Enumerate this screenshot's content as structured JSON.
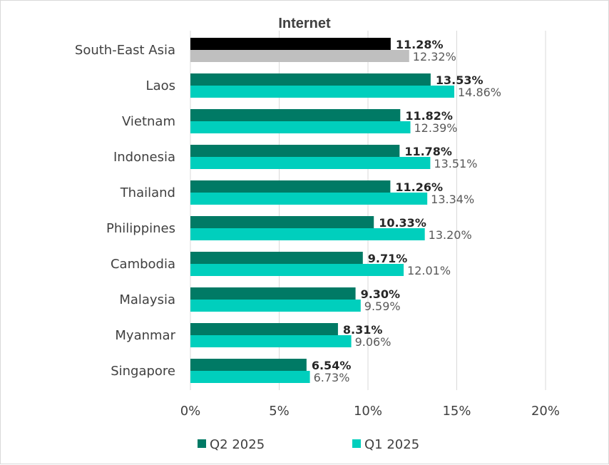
{
  "chart_data": {
    "type": "bar",
    "orientation": "horizontal",
    "title": "Internet",
    "categories": [
      "South-East Asia",
      "Laos",
      "Vietnam",
      "Indonesia",
      "Thailand",
      "Philippines",
      "Cambodia",
      "Malaysia",
      "Myanmar",
      "Singapore"
    ],
    "series": [
      {
        "name": "Q2 2025",
        "values": [
          11.28,
          13.53,
          11.82,
          11.78,
          11.26,
          10.33,
          9.71,
          9.3,
          8.31,
          6.54
        ],
        "labels": [
          "11.28%",
          "13.53%",
          "11.82%",
          "11.78%",
          "11.26%",
          "10.33%",
          "9.71%",
          "9.30%",
          "8.31%",
          "6.54%"
        ],
        "color": "#007a65",
        "highlight_color": "#000000"
      },
      {
        "name": "Q1 2025",
        "values": [
          12.32,
          14.86,
          12.39,
          13.51,
          13.34,
          13.2,
          12.01,
          9.59,
          9.06,
          6.73
        ],
        "labels": [
          "12.32%",
          "14.86%",
          "12.39%",
          "13.51%",
          "13.34%",
          "13.20%",
          "12.01%",
          "9.59%",
          "9.06%",
          "6.73%"
        ],
        "color": "#00cfbd",
        "highlight_color": "#bfbfbf"
      }
    ],
    "xlim": [
      0,
      20
    ],
    "xticks": [
      0,
      5,
      10,
      15,
      20
    ],
    "xtick_labels": [
      "0%",
      "5%",
      "10%",
      "15%",
      "20%"
    ],
    "grid": true,
    "legend_position": "bottom"
  }
}
